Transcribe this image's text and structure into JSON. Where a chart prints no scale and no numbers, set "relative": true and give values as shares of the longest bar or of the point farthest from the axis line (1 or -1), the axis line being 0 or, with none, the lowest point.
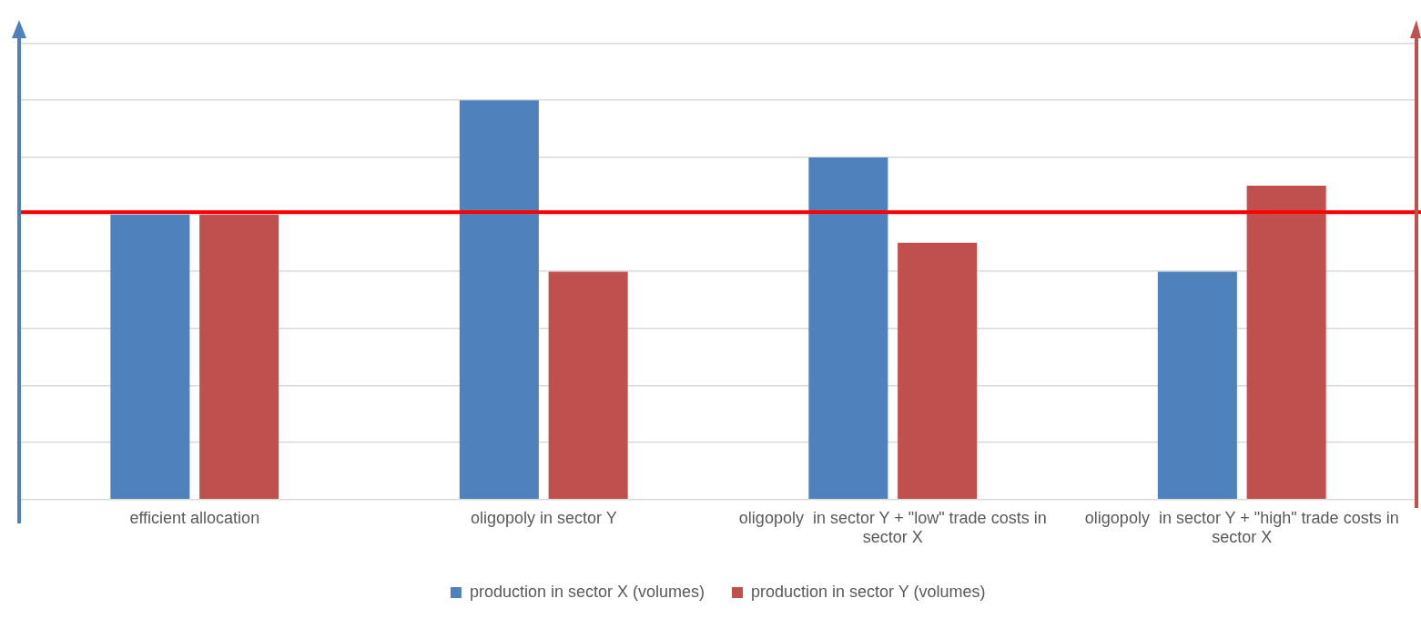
{
  "chart_data": {
    "type": "bar",
    "relative": true,
    "categories": [
      "efficient allocation",
      "oligopoly in sector Y",
      "oligopoly  in sector Y + \"low\" trade costs in sector X",
      "oligopoly  in sector Y + \"high\" trade costs in sector X"
    ],
    "series": [
      {
        "name": "production in sector X (volumes)",
        "color": "#4f81bd",
        "values": [
          0.714,
          1,
          0.857,
          0.571
        ]
      },
      {
        "name": "production in sector Y (volumes)",
        "color": "#c0504d",
        "values": [
          0.714,
          0.571,
          0.643,
          0.786
        ]
      }
    ],
    "ref_lines": [
      {
        "axis": "y",
        "value": 0.72,
        "color": "#ff0000"
      }
    ],
    "grid": "y",
    "legend": "bottom"
  }
}
